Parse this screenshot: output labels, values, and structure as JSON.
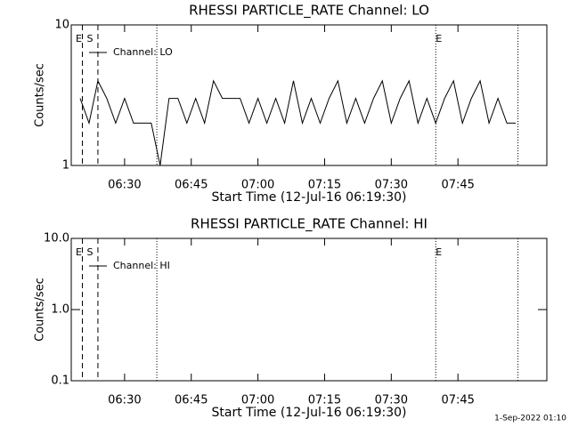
{
  "chart_data": [
    {
      "type": "line",
      "title": "RHESSI PARTICLE_RATE Channel: LO",
      "x_label": "Start Time (12-Jul-16 06:19:30)",
      "y_label": "Counts/sec",
      "log_y": true,
      "xlim": [
        "06:18",
        "08:05"
      ],
      "xticks": [
        "06:30",
        "06:45",
        "07:00",
        "07:15",
        "07:30",
        "07:45"
      ],
      "ylim": [
        1,
        10
      ],
      "yticks": [
        1,
        10
      ],
      "x": [
        "06:20",
        "06:22",
        "06:24",
        "06:26",
        "06:28",
        "06:30",
        "06:32",
        "06:34",
        "06:36",
        "06:38",
        "06:40",
        "06:42",
        "06:44",
        "06:46",
        "06:48",
        "06:50",
        "06:52",
        "06:54",
        "06:56",
        "06:58",
        "07:00",
        "07:02",
        "07:04",
        "07:06",
        "07:08",
        "07:10",
        "07:12",
        "07:14",
        "07:16",
        "07:18",
        "07:20",
        "07:22",
        "07:24",
        "07:26",
        "07:28",
        "07:30",
        "07:32",
        "07:34",
        "07:36",
        "07:38",
        "07:40",
        "07:42",
        "07:44",
        "07:46",
        "07:48",
        "07:50",
        "07:52",
        "07:54",
        "07:56",
        "07:58"
      ],
      "series": [
        {
          "name": "Channel: LO",
          "color": "#000000",
          "values": [
            3,
            2,
            4,
            3,
            2,
            3,
            2,
            2,
            2,
            1,
            3,
            3,
            2,
            3,
            2,
            4,
            3,
            3,
            3,
            2,
            3,
            2,
            3,
            2,
            4,
            2,
            3,
            2,
            3,
            4,
            2,
            3,
            2,
            3,
            4,
            2,
            3,
            4,
            2,
            3,
            2,
            3,
            4,
            2,
            3,
            4,
            2,
            3,
            2,
            2
          ]
        }
      ],
      "annotations": [
        {
          "text": "E",
          "x": "06:19"
        },
        {
          "text": "S",
          "x": "06:21:30"
        },
        {
          "text": "E",
          "x": "07:40"
        }
      ],
      "dashed_lines": [
        "06:20:30",
        "06:24"
      ],
      "dotted_lines": [
        "06:37:15",
        "07:40",
        "07:58:30"
      ]
    },
    {
      "type": "line",
      "title": "RHESSI PARTICLE_RATE Channel: HI",
      "x_label": "Start Time (12-Jul-16 06:19:30)",
      "y_label": "Counts/sec",
      "log_y": true,
      "xlim": [
        "06:18",
        "08:05"
      ],
      "xticks": [
        "06:30",
        "06:45",
        "07:00",
        "07:15",
        "07:30",
        "07:45"
      ],
      "ylim": [
        0.1,
        10
      ],
      "yticks": [
        0.1,
        {
          "value": 1,
          "label": "1.0"
        },
        {
          "value": 10,
          "label": "10.0"
        }
      ],
      "x": [],
      "series": [
        {
          "name": "Channel: HI",
          "color": "#000000",
          "values": []
        }
      ],
      "annotations": [
        {
          "text": "E",
          "x": "06:19"
        },
        {
          "text": "S",
          "x": "06:21:30"
        },
        {
          "text": "E",
          "x": "07:40"
        }
      ],
      "dashed_lines": [
        "06:20:30",
        "06:24"
      ],
      "dotted_lines": [
        "06:37:15",
        "07:40",
        "07:58:30"
      ]
    }
  ],
  "footer": "1-Sep-2022 01:10"
}
